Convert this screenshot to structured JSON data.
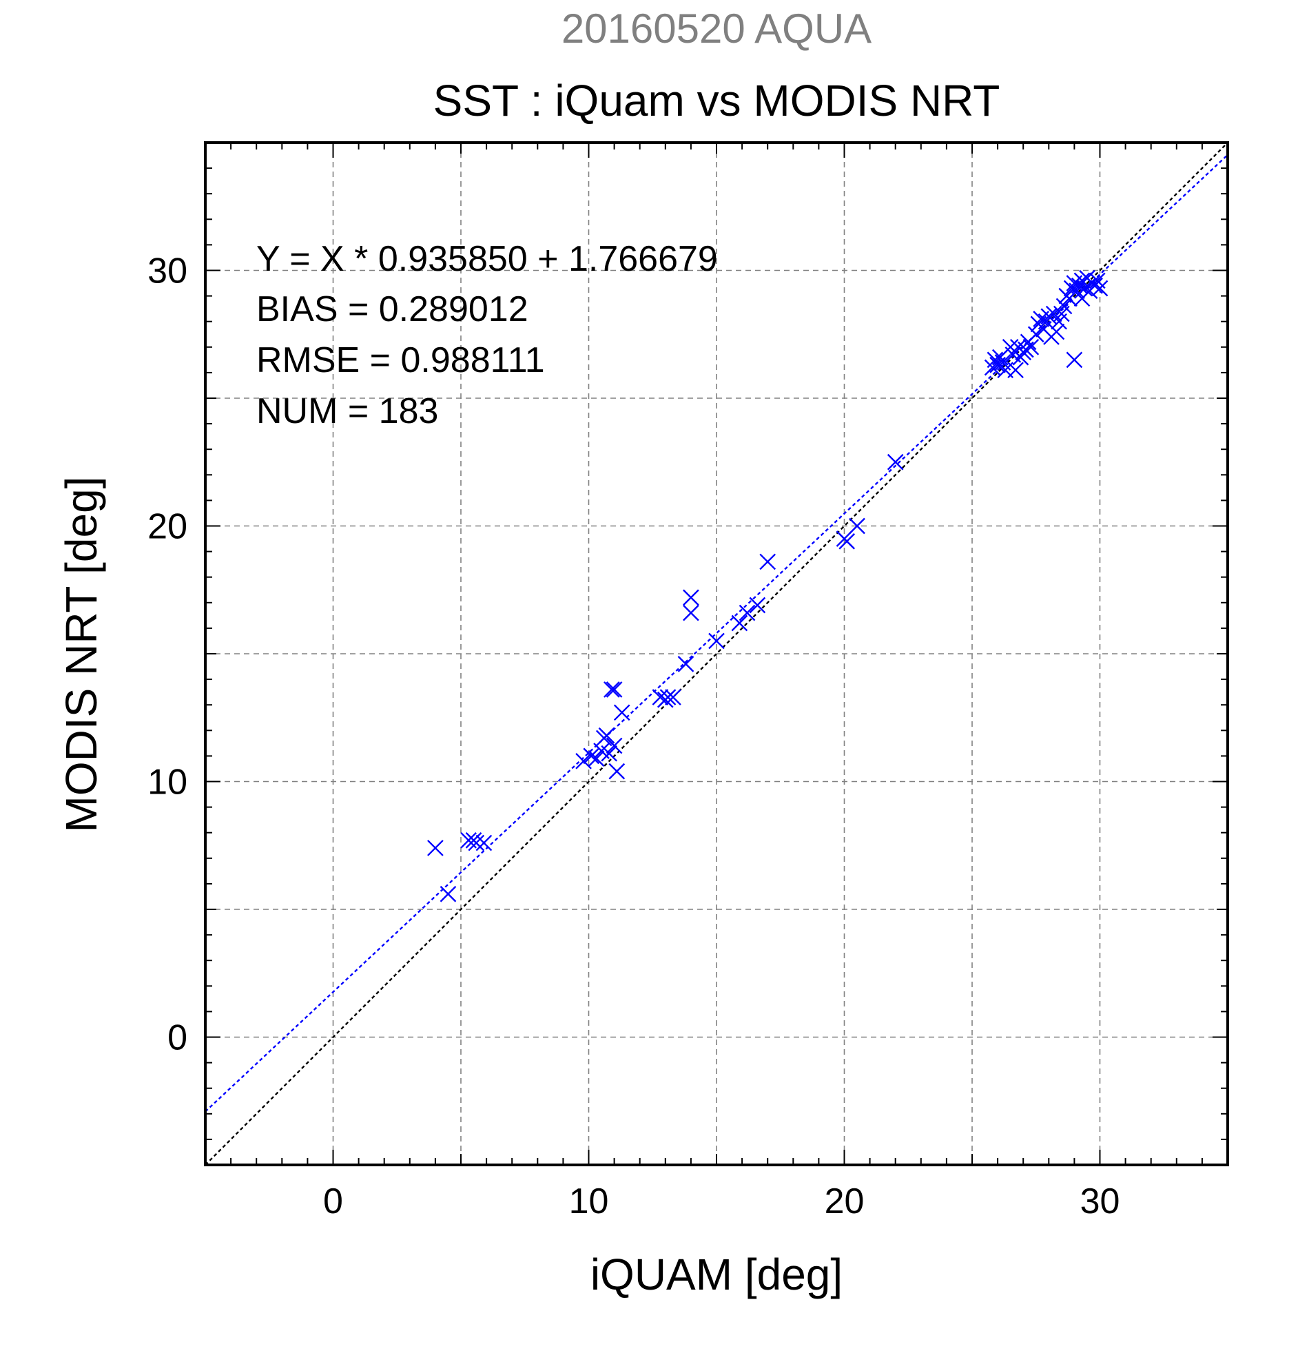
{
  "colors": {
    "supertitle": "#808080",
    "text": "#000000",
    "points": "#0000ff",
    "fit_line": "#0000ff",
    "identity_line": "#000000",
    "grid": "#808080"
  },
  "chart_data": {
    "type": "scatter",
    "supertitle": "20160520 AQUA",
    "title": "SST : iQuam vs MODIS NRT",
    "xlabel": "iQUAM [deg]",
    "ylabel": "MODIS NRT [deg]",
    "xlim": [
      -5,
      35
    ],
    "ylim": [
      -5,
      35
    ],
    "xticks": [
      0,
      10,
      20,
      30
    ],
    "yticks": [
      0,
      10,
      20,
      30
    ],
    "grid": true,
    "marker": "x",
    "stats": {
      "equation": "Y = X * 0.935850 + 1.766679",
      "bias": "BIAS = 0.289012",
      "rmse": "RMSE = 0.988111",
      "num": "NUM = 183"
    },
    "fit_line": {
      "slope": 0.93585,
      "intercept": 1.766679
    },
    "identity_line": {
      "slope": 1,
      "intercept": 0
    },
    "points": [
      [
        4.0,
        7.4
      ],
      [
        4.5,
        5.6
      ],
      [
        5.3,
        7.7
      ],
      [
        5.5,
        7.7
      ],
      [
        5.6,
        7.6
      ],
      [
        5.9,
        7.6
      ],
      [
        9.8,
        10.8
      ],
      [
        10.1,
        11.0
      ],
      [
        10.3,
        10.9
      ],
      [
        10.5,
        11.2
      ],
      [
        10.6,
        11.7
      ],
      [
        10.7,
        11.8
      ],
      [
        10.8,
        11.1
      ],
      [
        10.9,
        13.6
      ],
      [
        11.0,
        13.6
      ],
      [
        11.0,
        11.4
      ],
      [
        11.1,
        10.4
      ],
      [
        11.3,
        12.7
      ],
      [
        12.8,
        13.3
      ],
      [
        13.0,
        13.2
      ],
      [
        13.1,
        13.3
      ],
      [
        13.3,
        13.3
      ],
      [
        13.8,
        14.6
      ],
      [
        14.0,
        17.2
      ],
      [
        14.0,
        16.6
      ],
      [
        15.0,
        15.5
      ],
      [
        15.9,
        16.2
      ],
      [
        16.2,
        16.6
      ],
      [
        16.6,
        16.9
      ],
      [
        17.0,
        18.6
      ],
      [
        20.0,
        19.5
      ],
      [
        20.1,
        19.4
      ],
      [
        20.5,
        20.0
      ],
      [
        22.0,
        22.5
      ],
      [
        25.8,
        26.2
      ],
      [
        25.9,
        26.5
      ],
      [
        26.0,
        26.3
      ],
      [
        26.1,
        26.6
      ],
      [
        26.2,
        26.4
      ],
      [
        26.3,
        26.1
      ],
      [
        26.5,
        27.0
      ],
      [
        26.6,
        26.7
      ],
      [
        26.7,
        26.1
      ],
      [
        26.8,
        27.0
      ],
      [
        26.9,
        26.6
      ],
      [
        27.0,
        26.8
      ],
      [
        27.1,
        26.9
      ],
      [
        27.2,
        27.2
      ],
      [
        27.3,
        27.0
      ],
      [
        27.5,
        27.5
      ],
      [
        27.6,
        27.9
      ],
      [
        27.7,
        28.1
      ],
      [
        27.8,
        27.7
      ],
      [
        27.9,
        28.0
      ],
      [
        28.0,
        28.2
      ],
      [
        28.1,
        27.4
      ],
      [
        28.2,
        28.3
      ],
      [
        28.3,
        27.6
      ],
      [
        28.4,
        28.0
      ],
      [
        28.5,
        28.3
      ],
      [
        28.6,
        28.6
      ],
      [
        28.7,
        29.0
      ],
      [
        28.8,
        28.9
      ],
      [
        28.9,
        29.3
      ],
      [
        29.0,
        26.5
      ],
      [
        29.0,
        29.5
      ],
      [
        29.1,
        29.2
      ],
      [
        29.2,
        29.4
      ],
      [
        29.3,
        29.6
      ],
      [
        29.3,
        28.9
      ],
      [
        29.4,
        29.3
      ],
      [
        29.5,
        29.7
      ],
      [
        29.6,
        29.2
      ],
      [
        29.7,
        29.5
      ],
      [
        29.8,
        29.4
      ],
      [
        29.9,
        29.6
      ],
      [
        30.0,
        29.3
      ]
    ]
  }
}
